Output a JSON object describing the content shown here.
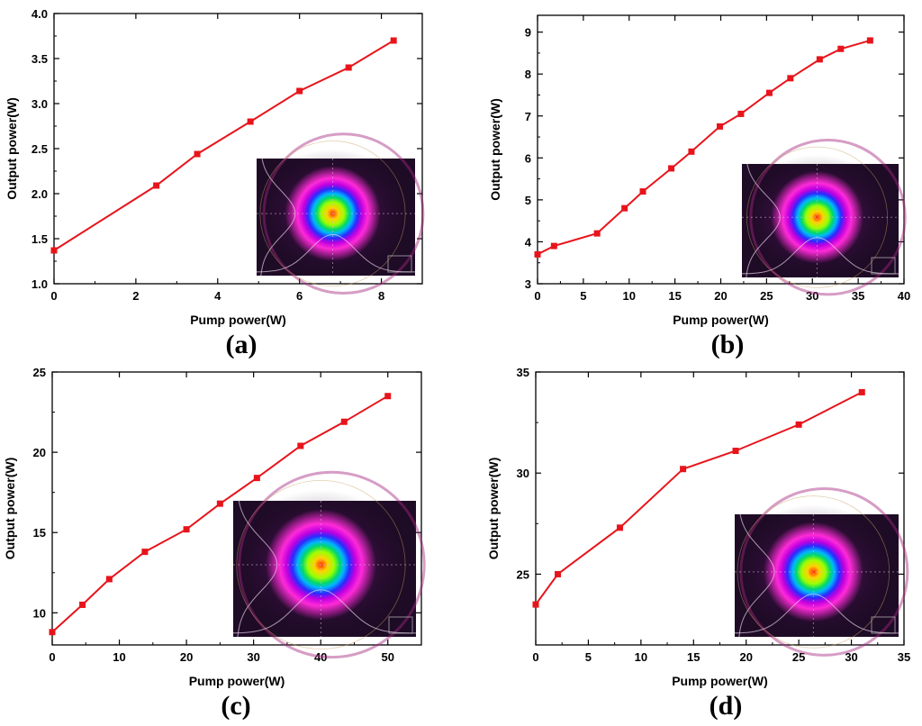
{
  "chart_data": [
    {
      "type": "line",
      "panel_label": "(a)",
      "xlabel": "Pump power(W)",
      "ylabel": "Output power(W)",
      "xlim": [
        0,
        9
      ],
      "ylim": [
        1.0,
        4.0
      ],
      "xticks": [
        0,
        2,
        4,
        6,
        8
      ],
      "xtick_labels": [
        "0",
        "2",
        "4",
        "6",
        "8"
      ],
      "yticks": [
        1.0,
        1.5,
        2.0,
        2.5,
        3.0,
        3.5,
        4.0
      ],
      "ytick_labels": [
        "1.0",
        "1.5",
        "2.0",
        "2.5",
        "3.0",
        "3.5",
        "4.0"
      ],
      "series": [
        {
          "name": "Output power",
          "color": "#e8141b",
          "x": [
            0,
            2.5,
            3.5,
            4.8,
            6.0,
            7.2,
            8.3
          ],
          "y": [
            1.37,
            2.09,
            2.44,
            2.8,
            3.14,
            3.4,
            3.7
          ]
        }
      ],
      "inset": "beam-profile"
    },
    {
      "type": "line",
      "panel_label": "(b)",
      "xlabel": "Pump power(W)",
      "ylabel": "Output power(W)",
      "xlim": [
        0,
        40
      ],
      "ylim": [
        3,
        9.4
      ],
      "xticks": [
        0,
        5,
        10,
        15,
        20,
        25,
        30,
        35,
        40
      ],
      "xtick_labels": [
        "0",
        "5",
        "10",
        "15",
        "20",
        "25",
        "30",
        "35",
        "40"
      ],
      "yticks": [
        3,
        4,
        5,
        6,
        7,
        8,
        9
      ],
      "ytick_labels": [
        "3",
        "4",
        "5",
        "6",
        "7",
        "8",
        "9"
      ],
      "series": [
        {
          "name": "Output power",
          "color": "#e8141b",
          "x": [
            0,
            1.8,
            6.5,
            9.5,
            11.5,
            14.6,
            16.8,
            19.9,
            22.2,
            25.3,
            27.6,
            30.8,
            33.1,
            36.3
          ],
          "y": [
            3.7,
            3.9,
            4.2,
            4.8,
            5.2,
            5.75,
            6.15,
            6.75,
            7.05,
            7.55,
            7.9,
            8.35,
            8.6,
            8.8
          ]
        }
      ],
      "inset": "beam-profile"
    },
    {
      "type": "line",
      "panel_label": "(c)",
      "xlabel": "Pump power(W)",
      "ylabel": "Output power(W)",
      "xlim": [
        0,
        55
      ],
      "ylim": [
        8,
        25
      ],
      "xticks": [
        0,
        10,
        20,
        30,
        40,
        50
      ],
      "xtick_labels": [
        "0",
        "10",
        "20",
        "30",
        "40",
        "50"
      ],
      "yticks": [
        10,
        15,
        20,
        25
      ],
      "ytick_labels": [
        "10",
        "15",
        "20",
        "25"
      ],
      "series": [
        {
          "name": "Output power",
          "color": "#e8141b",
          "x": [
            0,
            4.5,
            8.5,
            13.8,
            20,
            25,
            30.5,
            37,
            43.5,
            50
          ],
          "y": [
            8.8,
            10.5,
            12.1,
            13.8,
            15.2,
            16.8,
            18.4,
            20.4,
            21.9,
            23.5
          ]
        }
      ],
      "inset": "beam-profile"
    },
    {
      "type": "line",
      "panel_label": "(d)",
      "xlabel": "Pump power(W)",
      "ylabel": "Output power(W)",
      "xlim": [
        0,
        35
      ],
      "ylim": [
        21.5,
        35
      ],
      "xticks": [
        0,
        5,
        10,
        15,
        20,
        25,
        30,
        35
      ],
      "xtick_labels": [
        "0",
        "5",
        "10",
        "15",
        "20",
        "25",
        "30",
        "35"
      ],
      "yticks": [
        25,
        30,
        35
      ],
      "ytick_labels": [
        "25",
        "30",
        "35"
      ],
      "series": [
        {
          "name": "Output power",
          "color": "#e8141b",
          "x": [
            0,
            2.1,
            8,
            14,
            19,
            25,
            31
          ],
          "y": [
            23.5,
            25.0,
            27.3,
            30.2,
            31.1,
            32.4,
            34.0
          ]
        }
      ],
      "inset": "beam-profile"
    }
  ]
}
